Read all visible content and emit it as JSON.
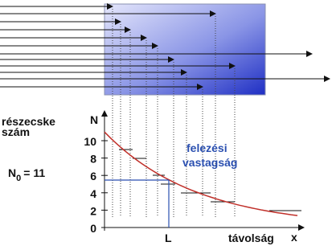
{
  "y_title": [
    "részecske",
    "szám"
  ],
  "y_axis_symbol": "N",
  "initial": {
    "symbol": "N",
    "subscript": "0",
    "value": "= 11"
  },
  "y_ticks": [
    "0",
    "2",
    "4",
    "6",
    "8",
    "10"
  ],
  "half_label": [
    "felezési",
    "vastagság"
  ],
  "half_mark": "L",
  "x_title": "távolság",
  "x_axis_symbol": "x"
}
